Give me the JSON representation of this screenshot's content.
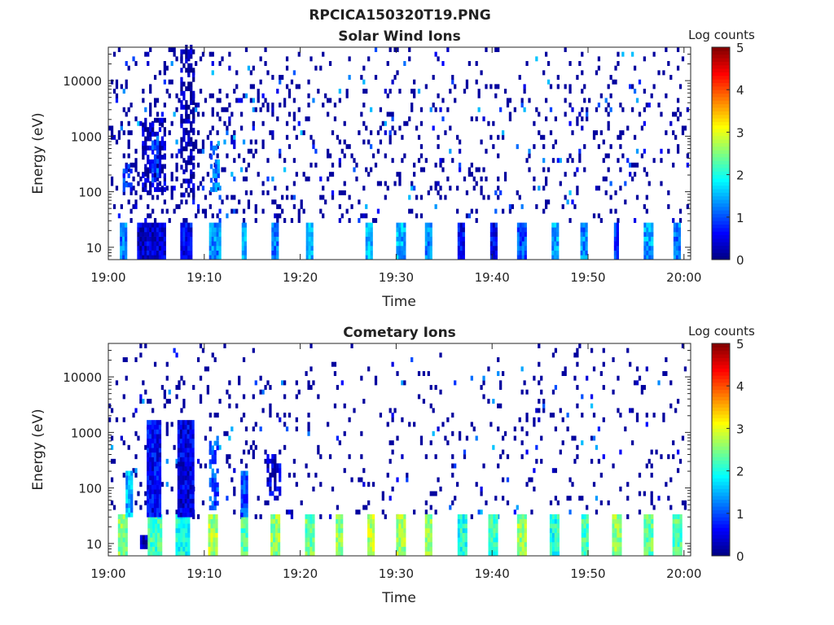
{
  "chart_data": {
    "type": "heatmap",
    "title": "RPCICA150320T19.PNG",
    "colorbar": {
      "label": "Log counts",
      "range": [
        0,
        5
      ],
      "ticks": [
        "0",
        "1",
        "2",
        "3",
        "4",
        "5"
      ],
      "colormap": "jet"
    },
    "panels": [
      {
        "title": "Solar Wind Ions",
        "xlabel": "Time",
        "ylabel": "Energy (eV)",
        "xlim_minutes": [
          0,
          60.7
        ],
        "xticks": [
          "19:00",
          "19:10",
          "19:20",
          "19:30",
          "19:40",
          "19:50",
          "20:00"
        ],
        "ylim": [
          6,
          40000
        ],
        "yscale": "log",
        "yticks": [
          {
            "value": 10,
            "label": "10"
          },
          {
            "value": 100,
            "label": "100"
          },
          {
            "value": 1000,
            "label": "1000"
          },
          {
            "value": 10000,
            "label": "10000"
          }
        ],
        "bursts": [
          {
            "t": [
              1.2,
              1.8
            ],
            "e": [
              6,
              25
            ],
            "v": 1.2
          },
          {
            "t": [
              3,
              6
            ],
            "e": [
              6,
              25
            ],
            "v": 0.4
          },
          {
            "t": [
              7.5,
              8.6
            ],
            "e": [
              6,
              25
            ],
            "v": 0.6
          },
          {
            "t": [
              10.5,
              11.6
            ],
            "e": [
              6,
              25
            ],
            "v": 1.3
          },
          {
            "t": [
              13.9,
              14.4
            ],
            "e": [
              6,
              25
            ],
            "v": 1.6
          },
          {
            "t": [
              17,
              17.6
            ],
            "e": [
              6,
              25
            ],
            "v": 1.2
          },
          {
            "t": [
              20.6,
              21.2
            ],
            "e": [
              6,
              25
            ],
            "v": 1.6
          },
          {
            "t": [
              26.8,
              27.4
            ],
            "e": [
              6,
              25
            ],
            "v": 1.6
          },
          {
            "t": [
              30,
              30.8
            ],
            "e": [
              6,
              25
            ],
            "v": 1.5
          },
          {
            "t": [
              33,
              33.6
            ],
            "e": [
              6,
              25
            ],
            "v": 1.3
          },
          {
            "t": [
              36.4,
              37
            ],
            "e": [
              6,
              25
            ],
            "v": 0.6
          },
          {
            "t": [
              39.8,
              40.5
            ],
            "e": [
              6,
              25
            ],
            "v": 0.6
          },
          {
            "t": [
              42.6,
              43.4
            ],
            "e": [
              6,
              25
            ],
            "v": 1.0
          },
          {
            "t": [
              46.2,
              46.9
            ],
            "e": [
              6,
              25
            ],
            "v": 1.4
          },
          {
            "t": [
              49.2,
              49.8
            ],
            "e": [
              6,
              25
            ],
            "v": 1.3
          },
          {
            "t": [
              52.7,
              53.2
            ],
            "e": [
              6,
              25
            ],
            "v": 0.8
          },
          {
            "t": [
              55.8,
              56.6
            ],
            "e": [
              6,
              25
            ],
            "v": 1.4
          },
          {
            "t": [
              58.9,
              59.6
            ],
            "e": [
              6,
              25
            ],
            "v": 1.2
          },
          {
            "t": [
              3.5,
              6
            ],
            "e": [
              100,
              2000
            ],
            "v": 0.3
          },
          {
            "t": [
              4.5,
              5.2
            ],
            "e": [
              150,
              900
            ],
            "v": 1.0
          },
          {
            "t": [
              7.5,
              9
            ],
            "e": [
              80,
              40000
            ],
            "v": 0.2
          },
          {
            "t": [
              10.6,
              11.4
            ],
            "e": [
              100,
              800
            ],
            "v": 1.2
          },
          {
            "t": [
              1.5,
              2.5
            ],
            "e": [
              100,
              300
            ],
            "v": 0.8
          }
        ],
        "scatter_density": 0.09
      },
      {
        "title": "Cometary Ions",
        "xlabel": "Time",
        "ylabel": "Energy (eV)",
        "xlim_minutes": [
          0,
          60.7
        ],
        "xticks": [
          "19:00",
          "19:10",
          "19:20",
          "19:30",
          "19:40",
          "19:50",
          "20:00"
        ],
        "ylim": [
          6,
          40000
        ],
        "yscale": "log",
        "yticks": [
          {
            "value": 10,
            "label": "10"
          },
          {
            "value": 100,
            "label": "100"
          },
          {
            "value": 1000,
            "label": "1000"
          },
          {
            "value": 10000,
            "label": "10000"
          }
        ],
        "bursts": [
          {
            "t": [
              1.0,
              2.0
            ],
            "e": [
              6,
              28
            ],
            "v": 2.5
          },
          {
            "t": [
              3.3,
              4.1
            ],
            "e": [
              8,
              14
            ],
            "v": 0.2
          },
          {
            "t": [
              4.1,
              5.5
            ],
            "e": [
              6,
              28
            ],
            "v": 2.2
          },
          {
            "t": [
              7,
              8.5
            ],
            "e": [
              6,
              28
            ],
            "v": 2.0
          },
          {
            "t": [
              10.4,
              11.3
            ],
            "e": [
              6,
              28
            ],
            "v": 2.7
          },
          {
            "t": [
              13.8,
              14.4
            ],
            "e": [
              6,
              28
            ],
            "v": 2.3
          },
          {
            "t": [
              16.9,
              17.8
            ],
            "e": [
              6,
              28
            ],
            "v": 2.6
          },
          {
            "t": [
              20.5,
              21.4
            ],
            "e": [
              6,
              28
            ],
            "v": 2.4
          },
          {
            "t": [
              23.7,
              24.4
            ],
            "e": [
              6,
              28
            ],
            "v": 2.6
          },
          {
            "t": [
              27,
              27.6
            ],
            "e": [
              6,
              28
            ],
            "v": 2.8
          },
          {
            "t": [
              30,
              30.8
            ],
            "e": [
              6,
              28
            ],
            "v": 2.7
          },
          {
            "t": [
              33,
              33.7
            ],
            "e": [
              6,
              28
            ],
            "v": 2.6
          },
          {
            "t": [
              36.4,
              37.2
            ],
            "e": [
              6,
              28
            ],
            "v": 2.0
          },
          {
            "t": [
              39.6,
              40.4
            ],
            "e": [
              6,
              28
            ],
            "v": 2.2
          },
          {
            "t": [
              42.6,
              43.4
            ],
            "e": [
              6,
              28
            ],
            "v": 2.6
          },
          {
            "t": [
              46,
              46.8
            ],
            "e": [
              6,
              28
            ],
            "v": 2.0
          },
          {
            "t": [
              49.3,
              50
            ],
            "e": [
              6,
              28
            ],
            "v": 2.2
          },
          {
            "t": [
              52.5,
              53.4
            ],
            "e": [
              6,
              28
            ],
            "v": 2.6
          },
          {
            "t": [
              55.8,
              56.6
            ],
            "e": [
              6,
              28
            ],
            "v": 2.4
          },
          {
            "t": [
              58.8,
              59.6
            ],
            "e": [
              6,
              28
            ],
            "v": 2.3
          },
          {
            "t": [
              4,
              5.5
            ],
            "e": [
              30,
              1500
            ],
            "v": 0.6
          },
          {
            "t": [
              7.2,
              8.8
            ],
            "e": [
              30,
              1500
            ],
            "v": 0.5
          },
          {
            "t": [
              10.5,
              11.3
            ],
            "e": [
              40,
              600
            ],
            "v": 1.0
          },
          {
            "t": [
              13.8,
              14.5
            ],
            "e": [
              30,
              200
            ],
            "v": 1.0
          },
          {
            "t": [
              16.5,
              18
            ],
            "e": [
              60,
              400
            ],
            "v": 0.4
          },
          {
            "t": [
              1.8,
              2.4
            ],
            "e": [
              30,
              200
            ],
            "v": 1.5
          }
        ],
        "scatter_density": 0.06
      }
    ]
  }
}
